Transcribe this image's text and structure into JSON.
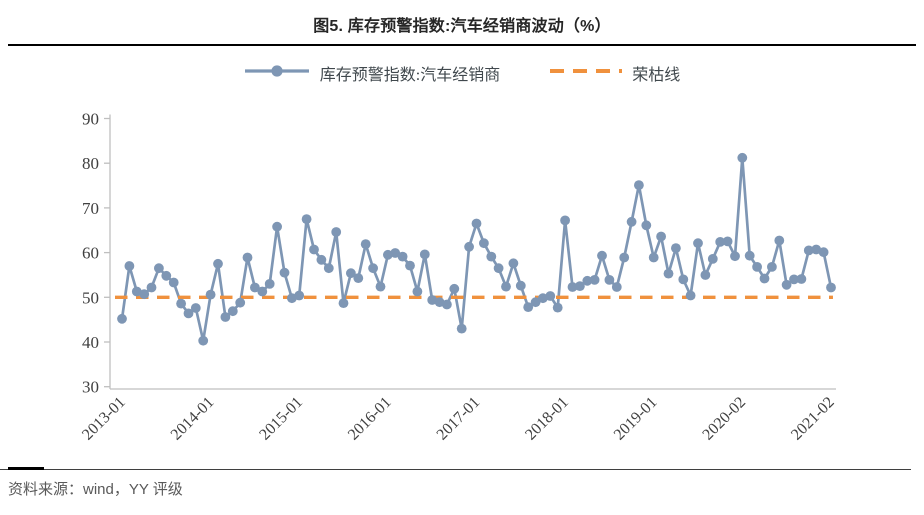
{
  "header": {
    "title": "图5. 库存预警指数:汽车经销商波动（%）"
  },
  "legend": {
    "series_label": "库存预警指数:汽车经销商",
    "reference_label": "荣枯线"
  },
  "footer": {
    "source": "资料来源：wind，YY 评级"
  },
  "colors": {
    "series": "#7E96B4",
    "reference": "#F0913D",
    "axis": "#BFBFBF",
    "tick_text": "#404040",
    "title_text": "#262626"
  },
  "chart_data": {
    "type": "line",
    "title": "图5. 库存预警指数:汽车经销商波动（%）",
    "ylabel": "",
    "xlabel": "",
    "ylim": [
      30,
      90
    ],
    "y_ticks": [
      90,
      80,
      70,
      60,
      50,
      40,
      30
    ],
    "grid": false,
    "legend_position": "top-center",
    "x_tick_labels": [
      "2013-01",
      "2014-01",
      "2015-01",
      "2016-01",
      "2017-01",
      "2018-01",
      "2019-01",
      "2020-02",
      "2021-02"
    ],
    "x_tick_indices": [
      0,
      12,
      24,
      36,
      48,
      60,
      72,
      84,
      96
    ],
    "series": [
      {
        "name": "库存预警指数:汽车经销商",
        "color": "#7E96B4",
        "marker": "circle",
        "values": [
          45.2,
          57.0,
          51.3,
          50.7,
          52.2,
          56.5,
          54.8,
          53.3,
          48.6,
          46.4,
          47.6,
          40.3,
          50.6,
          57.5,
          45.6,
          46.9,
          48.8,
          58.9,
          52.2,
          51.3,
          53.0,
          65.8,
          55.5,
          49.8,
          50.4,
          67.5,
          60.7,
          58.4,
          56.5,
          64.6,
          48.7,
          55.4,
          54.3,
          61.9,
          56.5,
          52.4,
          59.5,
          59.9,
          59.1,
          57.1,
          51.3,
          59.6,
          49.4,
          48.9,
          48.4,
          51.9,
          43.0,
          61.3,
          66.5,
          62.1,
          59.1,
          56.5,
          52.4,
          57.6,
          52.6,
          47.8,
          48.9,
          49.8,
          50.3,
          47.7,
          67.2,
          52.3,
          52.5,
          53.7,
          53.9,
          59.3,
          53.9,
          52.3,
          58.9,
          66.9,
          75.1,
          66.1,
          58.9,
          63.6,
          55.3,
          61.0,
          54.0,
          50.4,
          62.1,
          55.0,
          58.6,
          62.4,
          62.5,
          59.2,
          81.2,
          59.3,
          56.8,
          54.2,
          56.8,
          62.7,
          52.8,
          54.0,
          54.1,
          60.5,
          60.7,
          60.1,
          52.2
        ]
      }
    ],
    "reference_line": {
      "name": "荣枯线",
      "value": 50,
      "style": "dashed",
      "color": "#F0913D"
    }
  }
}
